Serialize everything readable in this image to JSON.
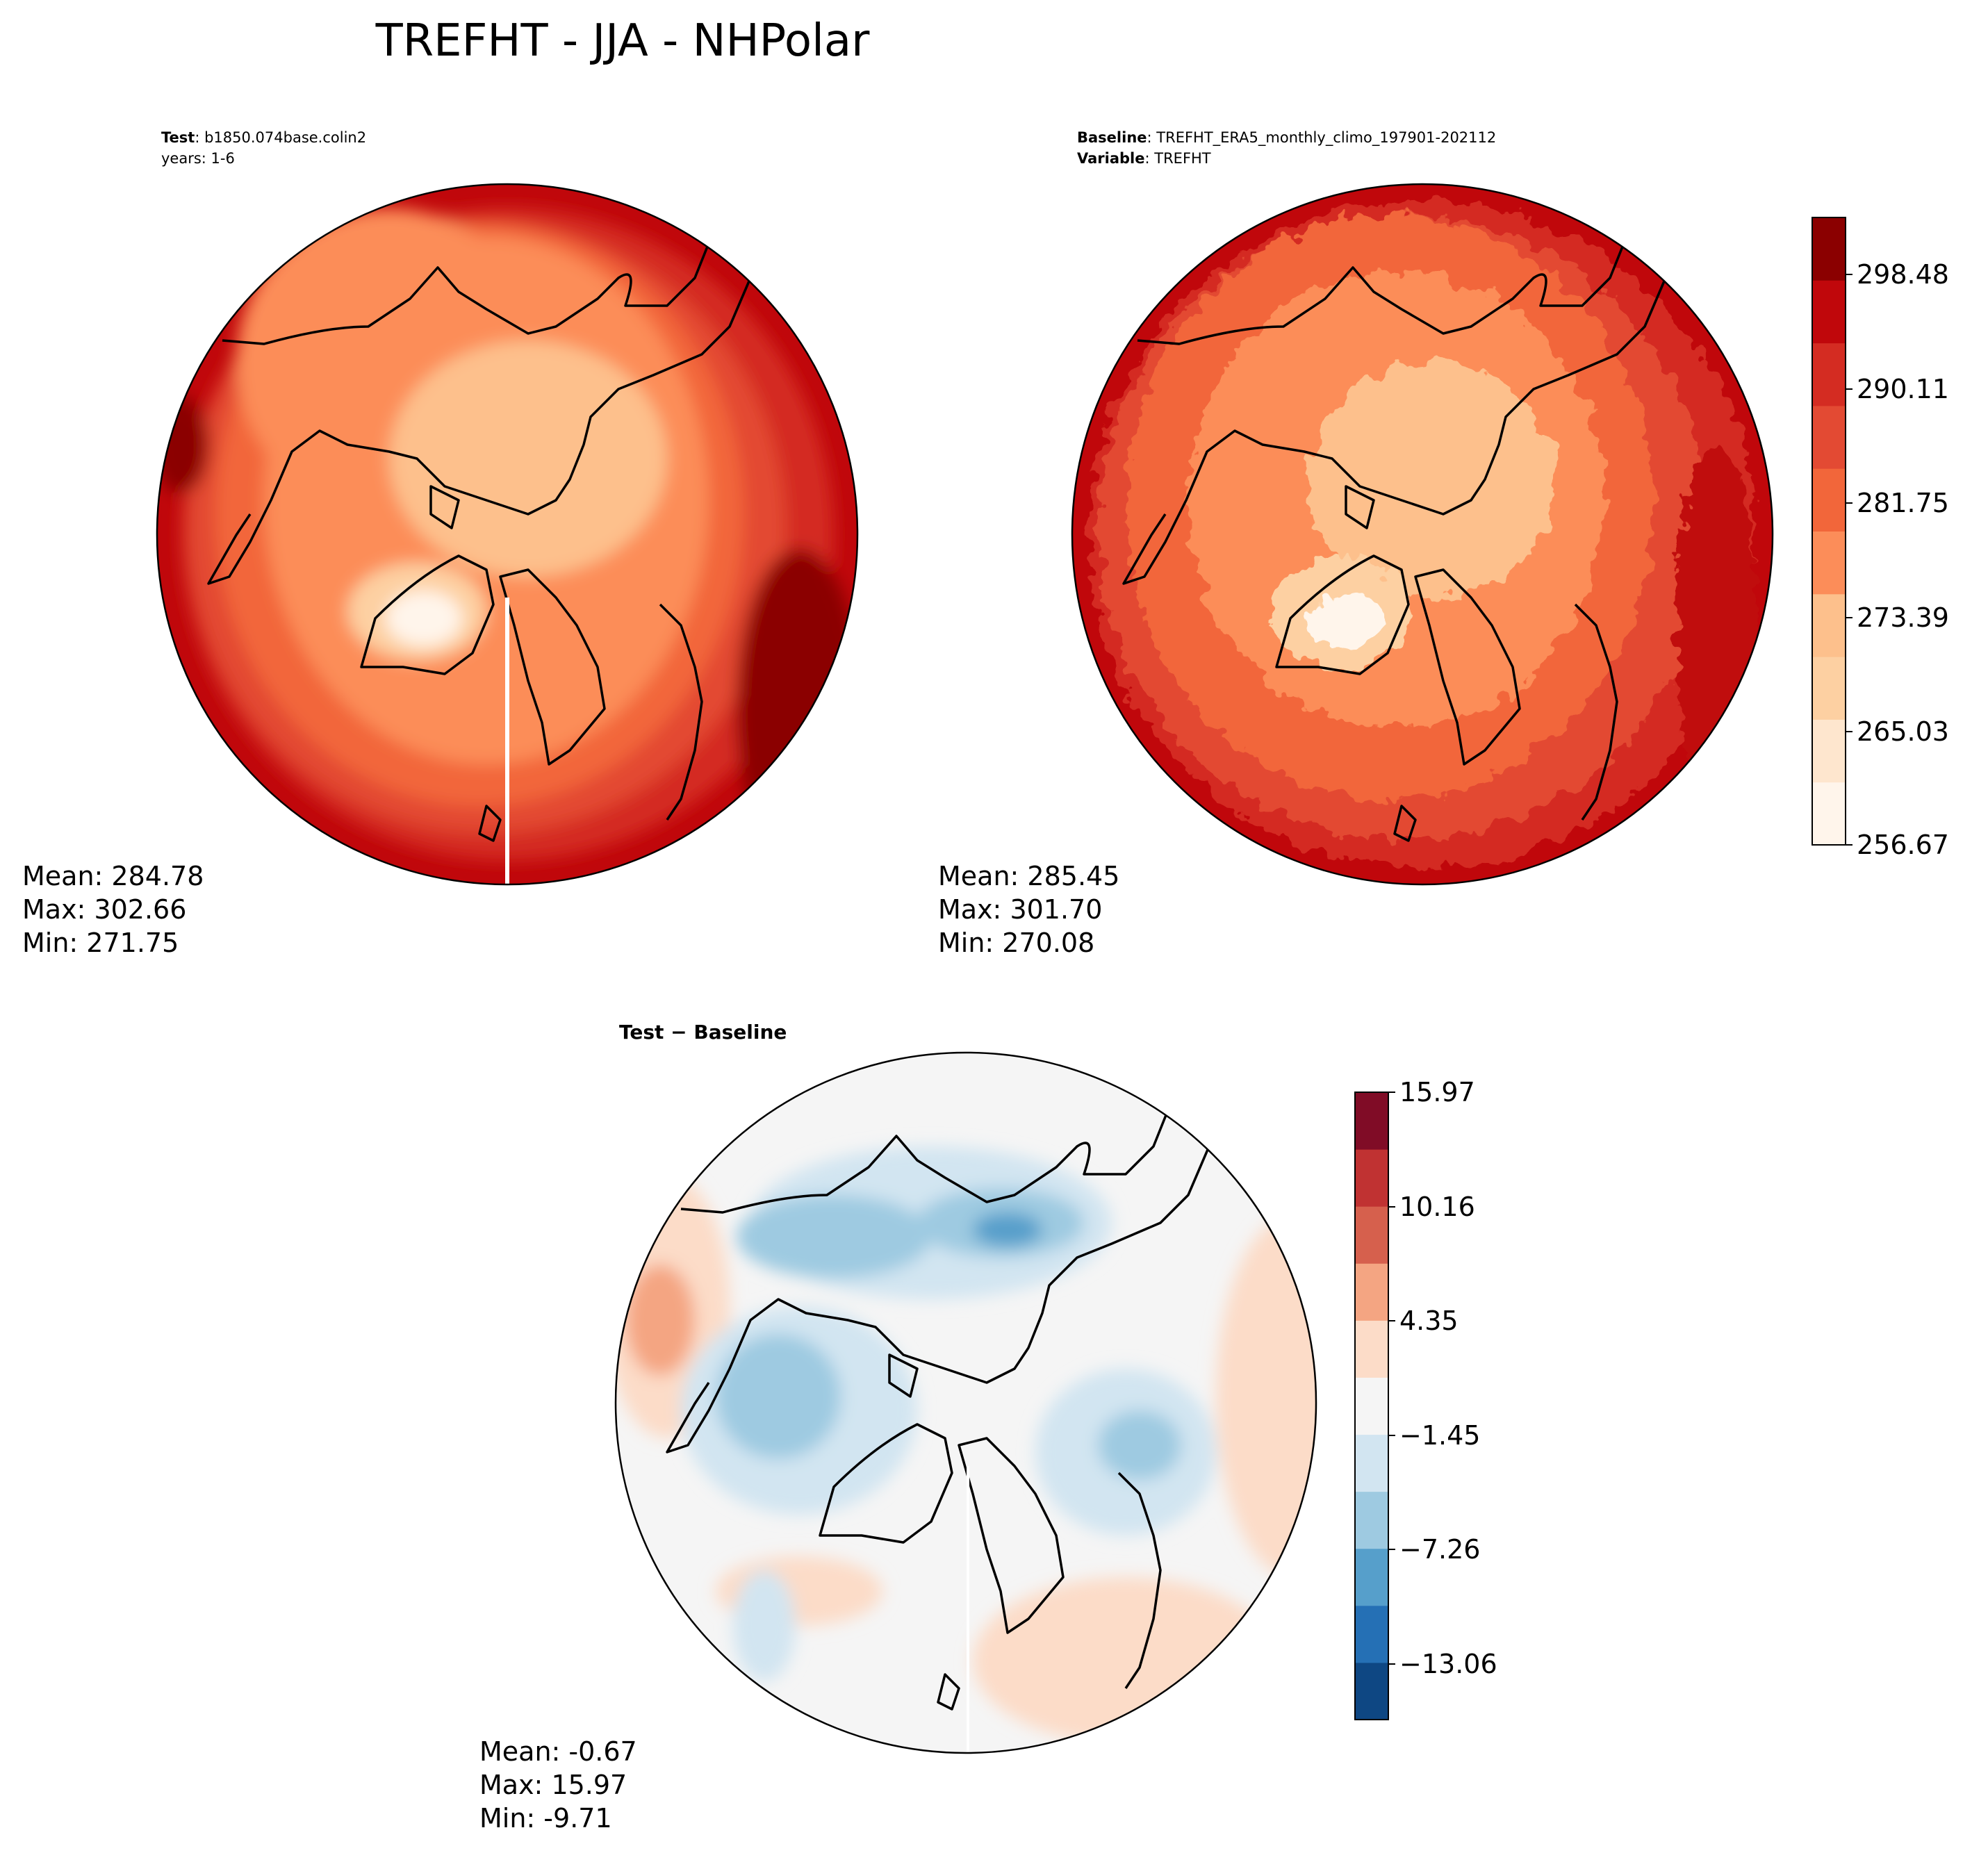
{
  "title": "TREFHT - JJA - NHPolar",
  "panels": {
    "test": {
      "header": [
        {
          "bold": "Test",
          "text": "b1850.074base.colin2"
        },
        {
          "bold": "",
          "text": "years: 1-6"
        }
      ],
      "stats": [
        "Mean: 284.78",
        "Max: 302.66",
        "Min: 271.75"
      ]
    },
    "baseline": {
      "header": [
        {
          "bold": "Baseline",
          "text": "TREFHT_ERA5_monthly_climo_197901-202112"
        },
        {
          "bold": "Variable",
          "text": "TREFHT"
        }
      ],
      "stats": [
        "Mean: 285.45",
        "Max: 301.70",
        "Min: 270.08"
      ]
    },
    "diff": {
      "header": "Test − Baseline",
      "stats": [
        "Mean: -0.67",
        "Max: 15.97",
        "Min: -9.71"
      ]
    }
  },
  "chart_data": [
    {
      "type": "heatmap",
      "name": "Test",
      "projection": "north-polar-stereographic",
      "colormap": "Reds",
      "levels_range": [
        256.67,
        302.66
      ],
      "colorbar_ticks": [
        "298.48",
        "290.11",
        "281.75",
        "273.39",
        "265.03",
        "256.67"
      ],
      "mean": 284.78,
      "max": 302.66,
      "min": 271.75
    },
    {
      "type": "heatmap",
      "name": "Baseline",
      "projection": "north-polar-stereographic",
      "colormap": "Reds",
      "levels_range": [
        256.67,
        302.66
      ],
      "colorbar_ticks": [
        "298.48",
        "290.11",
        "281.75",
        "273.39",
        "265.03",
        "256.67"
      ],
      "mean": 285.45,
      "max": 301.7,
      "min": 270.08
    },
    {
      "type": "heatmap",
      "name": "Test − Baseline",
      "projection": "north-polar-stereographic",
      "colormap": "RdBu_r",
      "levels_range": [
        -15.97,
        15.97
      ],
      "colorbar_ticks": [
        "15.97",
        "10.16",
        "4.35",
        "−1.45",
        "−7.26",
        "−13.06"
      ],
      "mean": -0.67,
      "max": 15.97,
      "min": -9.71
    }
  ],
  "colors": {
    "reds": [
      "#fff5eb",
      "#fee6ce",
      "#fdd0a2",
      "#fdc08c",
      "#fc8d59",
      "#f2663a",
      "#e34a33",
      "#d42c22",
      "#c0070b",
      "#8b0000"
    ],
    "rdbu": [
      "#0e4783",
      "#2570b5",
      "#569fcb",
      "#9ecae1",
      "#d2e5f1",
      "#f5f5f5",
      "#fcdcc8",
      "#f4a582",
      "#d6604d",
      "#c03232",
      "#800c26"
    ]
  }
}
